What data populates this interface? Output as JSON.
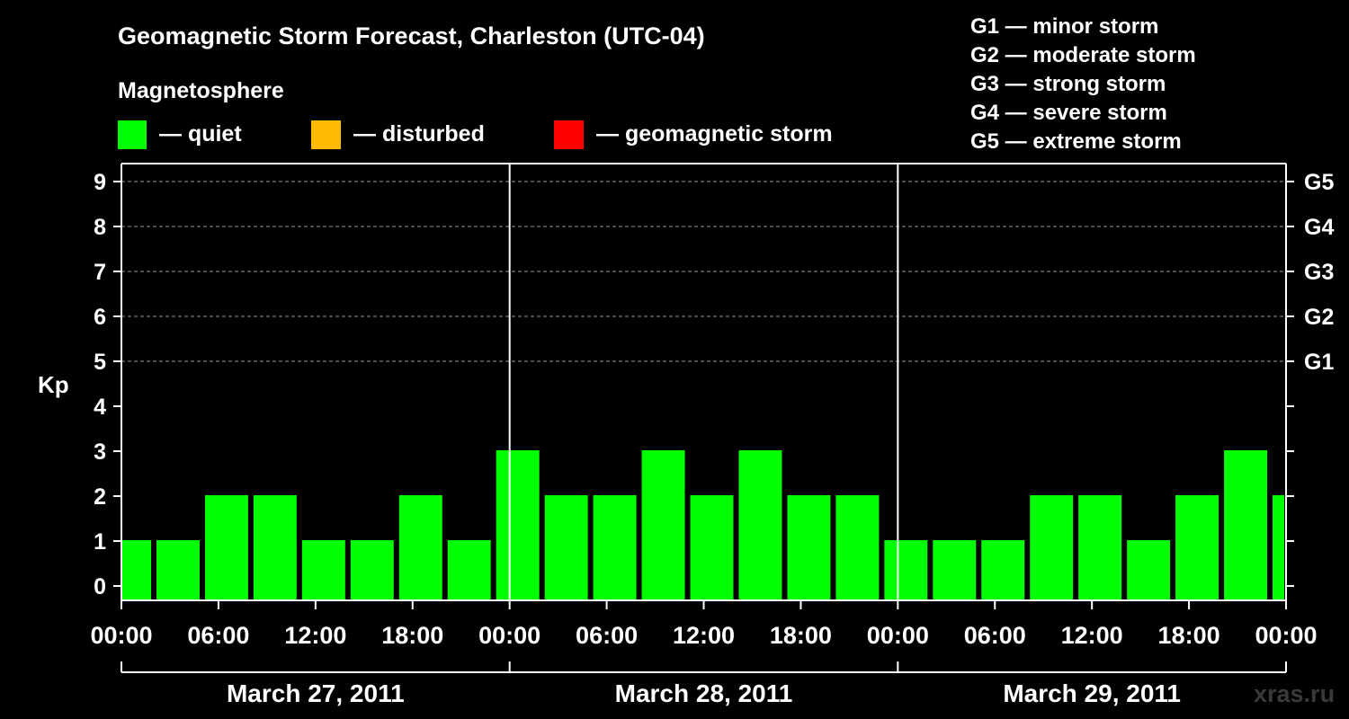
{
  "title": "Geomagnetic Storm Forecast, Charleston (UTC-04)",
  "legend": {
    "heading": "Magnetosphere",
    "items": [
      {
        "label": "— quiet",
        "color": "#00ff00"
      },
      {
        "label": "— disturbed",
        "color": "#ffbb00"
      },
      {
        "label": "— geomagnetic storm",
        "color": "#ff0000"
      }
    ]
  },
  "g_scale_legend": [
    "G1 — minor storm",
    "G2 — moderate storm",
    "G3 — strong storm",
    "G4 — severe storm",
    "G5 — extreme storm"
  ],
  "watermark": "xras.ru",
  "colors": {
    "background": "#000000",
    "quiet": "#00ff00",
    "disturbed": "#ffbb00",
    "storm": "#ff0000",
    "axis": "#ffffff",
    "grid": "#999999"
  },
  "chart_data": {
    "type": "bar",
    "ylabel": "Kp",
    "ylim": [
      0,
      9
    ],
    "y_ticks": [
      "0",
      "1",
      "2",
      "3",
      "4",
      "5",
      "6",
      "7",
      "8",
      "9"
    ],
    "right_ticks": [
      {
        "kp": 5,
        "label": "G1"
      },
      {
        "kp": 6,
        "label": "G2"
      },
      {
        "kp": 7,
        "label": "G3"
      },
      {
        "kp": 8,
        "label": "G4"
      },
      {
        "kp": 9,
        "label": "G5"
      }
    ],
    "grid_levels": [
      5,
      6,
      7,
      8,
      9
    ],
    "x_tick_labels": [
      "00:00",
      "06:00",
      "12:00",
      "18:00",
      "00:00",
      "06:00",
      "12:00",
      "18:00",
      "00:00",
      "06:00",
      "12:00",
      "18:00",
      "00:00"
    ],
    "x_tick_hours": [
      0,
      6,
      12,
      18,
      24,
      30,
      36,
      42,
      48,
      54,
      60,
      66,
      72
    ],
    "x_range_hours": [
      0,
      72
    ],
    "day_divider_hours": [
      24,
      48
    ],
    "dates": [
      "March 27, 2011",
      "March 28, 2011",
      "March 29, 2011"
    ],
    "bars": [
      {
        "start": 0,
        "end": 2,
        "kp": 1
      },
      {
        "start": 2,
        "end": 5,
        "kp": 1
      },
      {
        "start": 5,
        "end": 8,
        "kp": 2
      },
      {
        "start": 8,
        "end": 11,
        "kp": 2
      },
      {
        "start": 11,
        "end": 14,
        "kp": 1
      },
      {
        "start": 14,
        "end": 17,
        "kp": 1
      },
      {
        "start": 17,
        "end": 20,
        "kp": 2
      },
      {
        "start": 20,
        "end": 23,
        "kp": 1
      },
      {
        "start": 23,
        "end": 26,
        "kp": 3
      },
      {
        "start": 26,
        "end": 29,
        "kp": 2
      },
      {
        "start": 29,
        "end": 32,
        "kp": 2
      },
      {
        "start": 32,
        "end": 35,
        "kp": 3
      },
      {
        "start": 35,
        "end": 38,
        "kp": 2
      },
      {
        "start": 38,
        "end": 41,
        "kp": 3
      },
      {
        "start": 41,
        "end": 44,
        "kp": 2
      },
      {
        "start": 44,
        "end": 47,
        "kp": 2
      },
      {
        "start": 47,
        "end": 50,
        "kp": 1
      },
      {
        "start": 50,
        "end": 53,
        "kp": 1
      },
      {
        "start": 53,
        "end": 56,
        "kp": 1
      },
      {
        "start": 56,
        "end": 59,
        "kp": 2
      },
      {
        "start": 59,
        "end": 62,
        "kp": 2
      },
      {
        "start": 62,
        "end": 65,
        "kp": 1
      },
      {
        "start": 65,
        "end": 68,
        "kp": 2
      },
      {
        "start": 68,
        "end": 71,
        "kp": 3
      },
      {
        "start": 71,
        "end": 72,
        "kp": 2
      }
    ]
  }
}
